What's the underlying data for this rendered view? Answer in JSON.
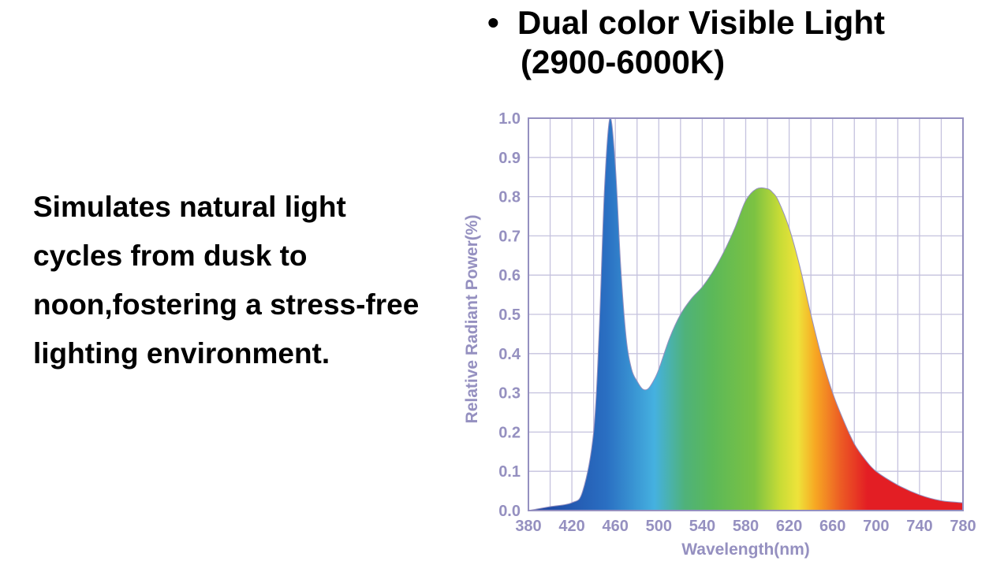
{
  "headline": {
    "bullet": "•",
    "line1": "Dual color Visible Light",
    "line2": "(2900-6000K)"
  },
  "description": "Simulates natural light cycles from dusk to noon,fostering a stress-free lighting environment.",
  "chart_data": {
    "type": "area",
    "title": "",
    "xlabel": "Wavelength(nm)",
    "ylabel": "Relative Radiant Power(%)",
    "xlim": [
      380,
      780
    ],
    "ylim": [
      0,
      1.0
    ],
    "xticks": [
      380,
      420,
      460,
      500,
      540,
      580,
      620,
      660,
      700,
      740,
      780
    ],
    "yticks": [
      "0.0",
      "0.1",
      "0.2",
      "0.3",
      "0.4",
      "0.5",
      "0.6",
      "0.7",
      "0.8",
      "0.9",
      "1.0"
    ],
    "grid": true,
    "fill": "spectral-gradient",
    "x": [
      380,
      400,
      420,
      430,
      440,
      445,
      450,
      455,
      460,
      465,
      470,
      475,
      480,
      485,
      490,
      495,
      500,
      510,
      520,
      530,
      540,
      550,
      560,
      570,
      580,
      590,
      600,
      605,
      610,
      620,
      630,
      640,
      650,
      660,
      670,
      680,
      690,
      700,
      720,
      740,
      760,
      780
    ],
    "values": [
      0.0,
      0.01,
      0.02,
      0.05,
      0.2,
      0.45,
      0.82,
      1.0,
      0.88,
      0.62,
      0.44,
      0.36,
      0.33,
      0.31,
      0.31,
      0.33,
      0.36,
      0.44,
      0.5,
      0.54,
      0.57,
      0.61,
      0.66,
      0.72,
      0.79,
      0.82,
      0.82,
      0.81,
      0.79,
      0.72,
      0.62,
      0.5,
      0.39,
      0.3,
      0.23,
      0.17,
      0.13,
      0.1,
      0.065,
      0.04,
      0.025,
      0.02
    ]
  },
  "colors": {
    "axis": "#9590c0",
    "grid": "#c5c2de",
    "spectrum": [
      "#1d3f9c",
      "#2a6fc2",
      "#45b1e0",
      "#5ab85a",
      "#7cc242",
      "#dde53a",
      "#f7a823",
      "#ec5a24",
      "#e31e24"
    ]
  }
}
